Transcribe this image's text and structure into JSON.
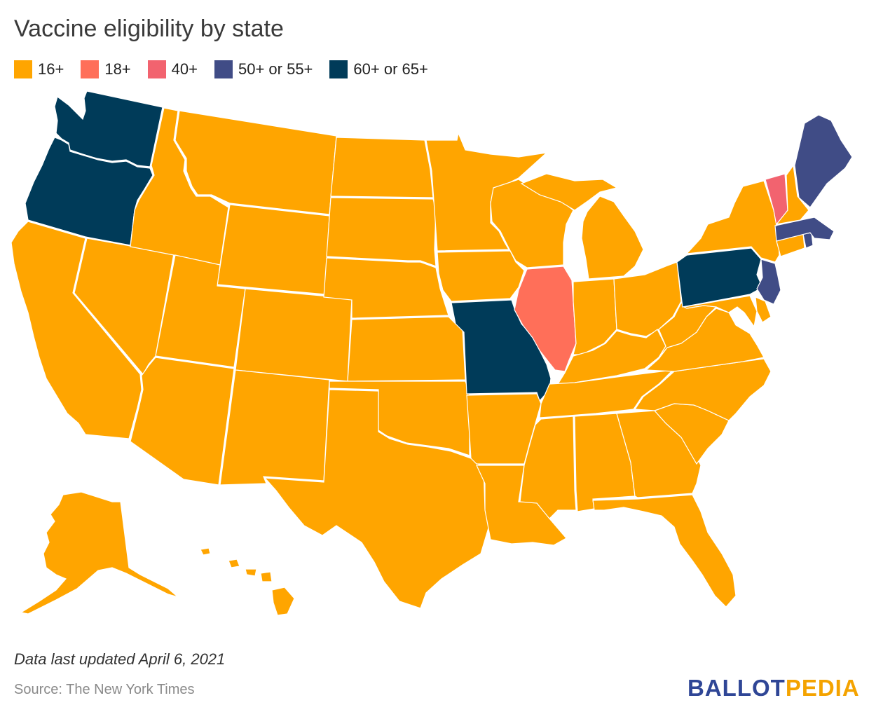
{
  "title": "Vaccine eligibility by state",
  "legend": [
    {
      "label": "16+",
      "color": "#FFA500"
    },
    {
      "label": "18+",
      "color": "#FF6F59"
    },
    {
      "label": "40+",
      "color": "#F2636F"
    },
    {
      "label": "50+ or 55+",
      "color": "#404C86"
    },
    {
      "label": "60+ or 65+",
      "color": "#003B59"
    }
  ],
  "colors": {
    "16+": "#FFA500",
    "18+": "#FF6F59",
    "40+": "#F2636F",
    "50+ or 55+": "#404C86",
    "60+ or 65+": "#003B59"
  },
  "states": [
    {
      "id": "WA",
      "category": "60+ or 65+"
    },
    {
      "id": "OR",
      "category": "60+ or 65+"
    },
    {
      "id": "MO",
      "category": "60+ or 65+"
    },
    {
      "id": "PA",
      "category": "60+ or 65+"
    },
    {
      "id": "ME",
      "category": "50+ or 55+"
    },
    {
      "id": "MA",
      "category": "50+ or 55+"
    },
    {
      "id": "NJ",
      "category": "50+ or 55+"
    },
    {
      "id": "VT",
      "category": "40+"
    },
    {
      "id": "IL",
      "category": "18+"
    },
    {
      "id": "CA",
      "category": "16+"
    },
    {
      "id": "NV",
      "category": "16+"
    },
    {
      "id": "ID",
      "category": "16+"
    },
    {
      "id": "MT",
      "category": "16+"
    },
    {
      "id": "WY",
      "category": "16+"
    },
    {
      "id": "UT",
      "category": "16+"
    },
    {
      "id": "AZ",
      "category": "16+"
    },
    {
      "id": "CO",
      "category": "16+"
    },
    {
      "id": "NM",
      "category": "16+"
    },
    {
      "id": "ND",
      "category": "16+"
    },
    {
      "id": "SD",
      "category": "16+"
    },
    {
      "id": "NE",
      "category": "16+"
    },
    {
      "id": "KS",
      "category": "16+"
    },
    {
      "id": "OK",
      "category": "16+"
    },
    {
      "id": "TX",
      "category": "16+"
    },
    {
      "id": "MN",
      "category": "16+"
    },
    {
      "id": "IA",
      "category": "16+"
    },
    {
      "id": "AR",
      "category": "16+"
    },
    {
      "id": "LA",
      "category": "16+"
    },
    {
      "id": "WI",
      "category": "16+"
    },
    {
      "id": "MI",
      "category": "16+"
    },
    {
      "id": "IN",
      "category": "16+"
    },
    {
      "id": "OH",
      "category": "16+"
    },
    {
      "id": "KY",
      "category": "16+"
    },
    {
      "id": "TN",
      "category": "16+"
    },
    {
      "id": "MS",
      "category": "16+"
    },
    {
      "id": "AL",
      "category": "16+"
    },
    {
      "id": "GA",
      "category": "16+"
    },
    {
      "id": "FL",
      "category": "16+"
    },
    {
      "id": "SC",
      "category": "16+"
    },
    {
      "id": "NC",
      "category": "16+"
    },
    {
      "id": "VA",
      "category": "16+"
    },
    {
      "id": "WV",
      "category": "16+"
    },
    {
      "id": "MD",
      "category": "16+"
    },
    {
      "id": "DE",
      "category": "16+"
    },
    {
      "id": "NY",
      "category": "16+"
    },
    {
      "id": "CT",
      "category": "16+"
    },
    {
      "id": "RI",
      "category": "50+ or 55+"
    },
    {
      "id": "NH",
      "category": "16+"
    },
    {
      "id": "AK",
      "category": "16+"
    },
    {
      "id": "HI",
      "category": "16+"
    }
  ],
  "footnote": "Data last updated April 6, 2021",
  "source": "Source: The New York Times",
  "logo": {
    "part1": "BALLOT",
    "part2": "PEDIA"
  }
}
